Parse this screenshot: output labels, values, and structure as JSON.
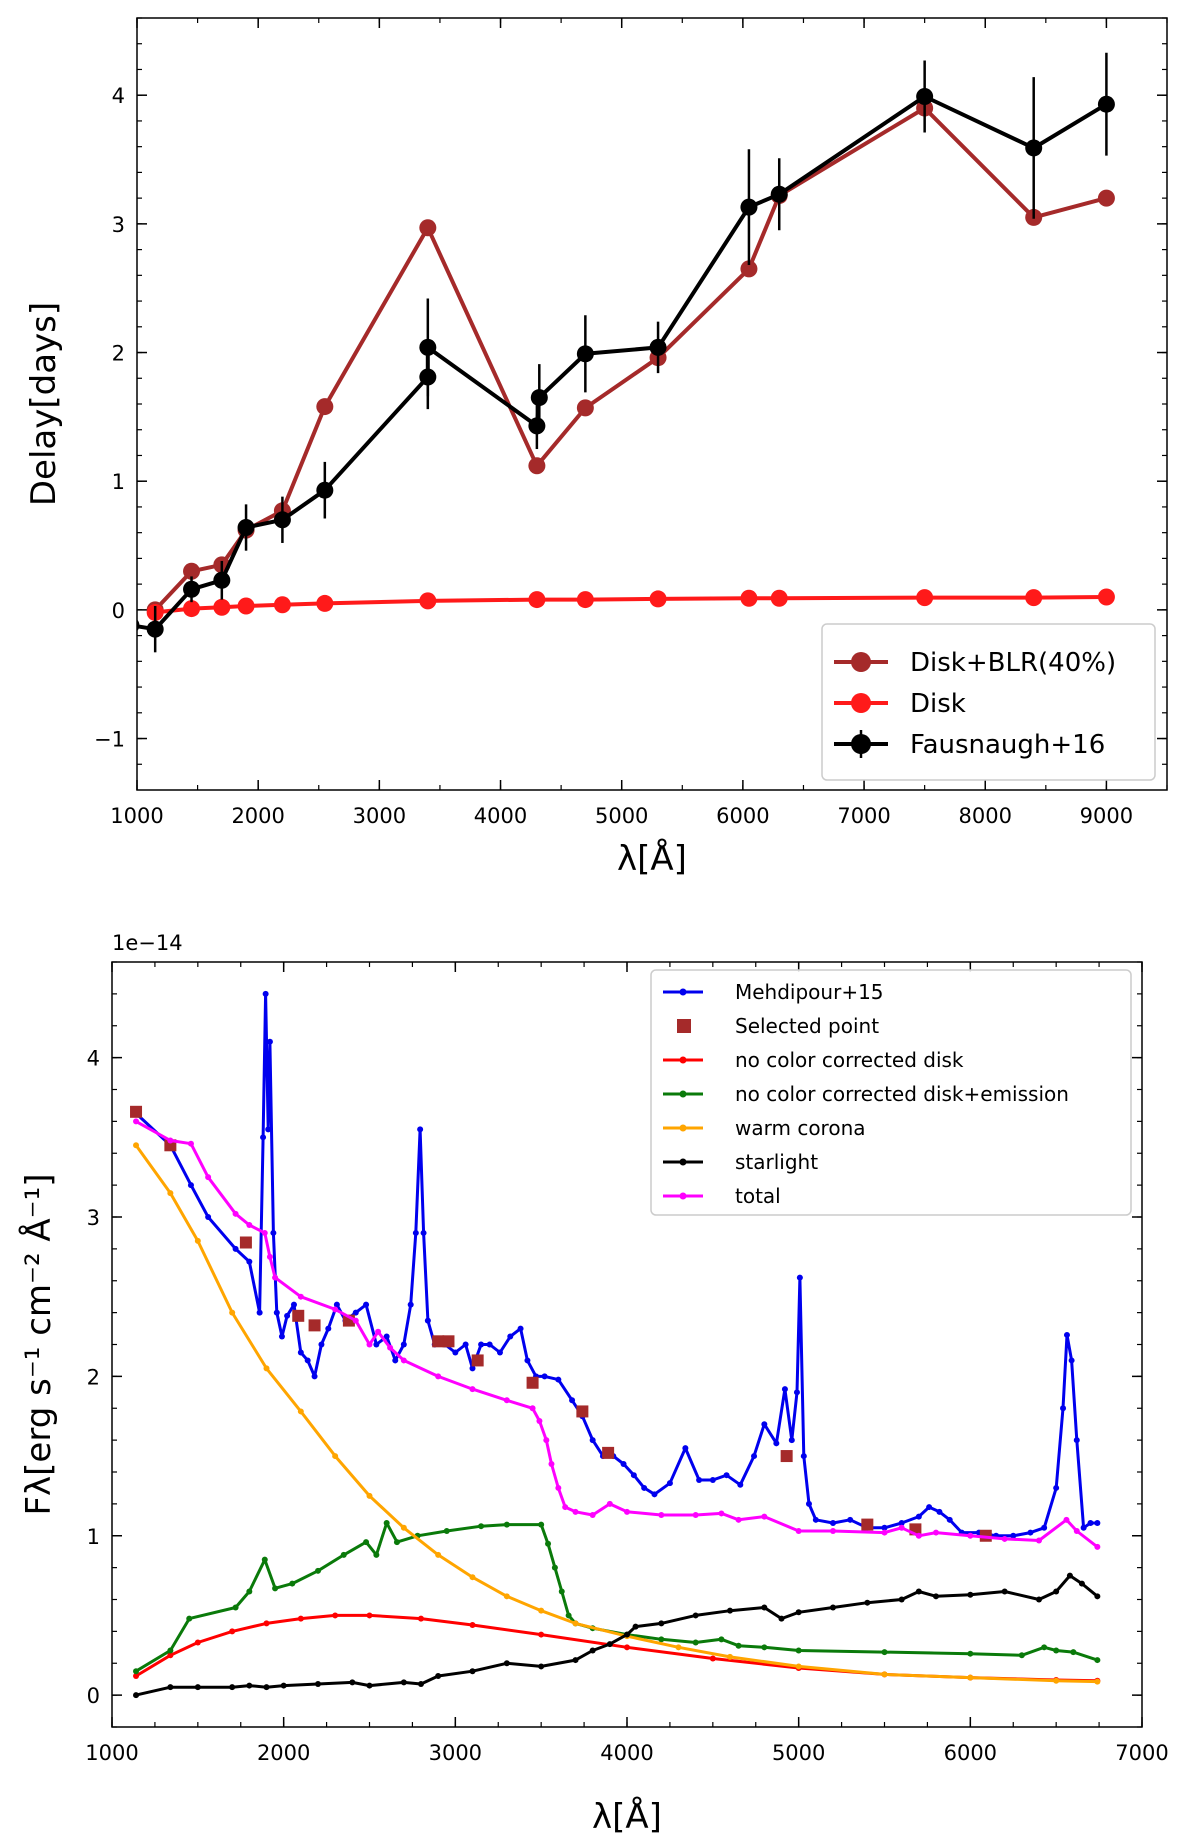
{
  "chart_data": [
    {
      "type": "line",
      "xlabel": "λ[Å]",
      "ylabel": "Delay[days]",
      "xlim": [
        1000,
        9500
      ],
      "ylim": [
        -1.4,
        4.6
      ],
      "xticks": [
        1000,
        2000,
        3000,
        4000,
        5000,
        6000,
        7000,
        8000,
        9000
      ],
      "yticks": [
        -1,
        0,
        1,
        2,
        3,
        4
      ],
      "legend_position": "lower-right",
      "series": [
        {
          "name": "Disk+BLR(40%)",
          "color": "#a52a2a",
          "x": [
            1150,
            1450,
            1700,
            1900,
            2200,
            2550,
            3400,
            4300,
            4700,
            5300,
            6050,
            6300,
            7500,
            8400,
            9000
          ],
          "y": [
            0.0,
            0.3,
            0.35,
            0.62,
            0.77,
            1.58,
            2.97,
            1.12,
            1.57,
            1.96,
            2.65,
            3.22,
            3.9,
            3.05,
            3.2
          ]
        },
        {
          "name": "Disk",
          "color": "#ff1a1a",
          "x": [
            1150,
            1450,
            1700,
            1900,
            2200,
            2550,
            3400,
            4300,
            4700,
            5300,
            6050,
            6300,
            7500,
            8400,
            9000
          ],
          "y": [
            -0.02,
            0.01,
            0.02,
            0.03,
            0.04,
            0.05,
            0.07,
            0.08,
            0.08,
            0.085,
            0.09,
            0.09,
            0.095,
            0.095,
            0.1
          ]
        },
        {
          "name": "Fausnaugh+16",
          "color": "#000000",
          "error_bars": true,
          "x": [
            950,
            1150,
            1450,
            1700,
            1900,
            2200,
            2550,
            3400,
            3400,
            4300,
            4320,
            4700,
            5300,
            6050,
            6300,
            7500,
            8400,
            9000
          ],
          "y": [
            -0.12,
            -0.15,
            0.16,
            0.23,
            0.64,
            0.7,
            0.93,
            1.81,
            2.04,
            1.43,
            1.65,
            1.99,
            2.04,
            3.13,
            3.23,
            3.99,
            3.59,
            3.93
          ],
          "yerr": [
            0.05,
            0.18,
            0.1,
            0.15,
            0.18,
            0.18,
            0.22,
            0.25,
            0.38,
            0.18,
            0.26,
            0.3,
            0.2,
            0.45,
            0.28,
            0.28,
            0.55,
            0.4
          ]
        }
      ]
    },
    {
      "type": "line",
      "xlabel": "λ[Å]",
      "ylabel": "Fλ[erg s⁻¹ cm⁻² Å⁻¹]",
      "offset_text": "1e−14",
      "xlim": [
        1000,
        7000
      ],
      "ylim": [
        -0.2,
        4.6
      ],
      "xticks": [
        1000,
        2000,
        3000,
        4000,
        5000,
        6000,
        7000
      ],
      "yticks": [
        0,
        1,
        2,
        3,
        4
      ],
      "legend_position": "upper-right",
      "series": [
        {
          "name": "Mehdipour+15",
          "color": "#0000ee",
          "x": [
            1140,
            1340,
            1460,
            1560,
            1720,
            1800,
            1860,
            1880,
            1895,
            1910,
            1920,
            1940,
            1960,
            1990,
            2020,
            2060,
            2100,
            2140,
            2180,
            2220,
            2260,
            2310,
            2360,
            2420,
            2480,
            2540,
            2600,
            2650,
            2700,
            2740,
            2770,
            2795,
            2815,
            2840,
            2880,
            2940,
            3000,
            3060,
            3100,
            3150,
            3200,
            3260,
            3320,
            3380,
            3420,
            3470,
            3520,
            3600,
            3680,
            3740,
            3800,
            3860,
            3920,
            3980,
            4040,
            4100,
            4160,
            4250,
            4340,
            4420,
            4500,
            4580,
            4660,
            4740,
            4800,
            4870,
            4920,
            4960,
            4990,
            5007,
            5030,
            5060,
            5100,
            5200,
            5300,
            5400,
            5500,
            5600,
            5700,
            5760,
            5820,
            5880,
            5950,
            6050,
            6150,
            6250,
            6350,
            6430,
            6500,
            6540,
            6563,
            6590,
            6620,
            6660,
            6700,
            6740
          ],
          "y": [
            3.65,
            3.45,
            3.2,
            3.0,
            2.8,
            2.72,
            2.4,
            3.5,
            4.4,
            3.55,
            4.1,
            2.9,
            2.4,
            2.25,
            2.38,
            2.45,
            2.15,
            2.1,
            2.0,
            2.2,
            2.3,
            2.45,
            2.35,
            2.4,
            2.45,
            2.2,
            2.25,
            2.1,
            2.2,
            2.45,
            2.9,
            3.55,
            2.9,
            2.35,
            2.2,
            2.2,
            2.15,
            2.2,
            2.05,
            2.2,
            2.2,
            2.15,
            2.25,
            2.3,
            2.1,
            2.0,
            2.0,
            1.98,
            1.85,
            1.75,
            1.6,
            1.5,
            1.5,
            1.45,
            1.38,
            1.3,
            1.26,
            1.33,
            1.55,
            1.35,
            1.35,
            1.38,
            1.32,
            1.5,
            1.7,
            1.58,
            1.92,
            1.6,
            1.9,
            2.62,
            1.5,
            1.2,
            1.1,
            1.08,
            1.1,
            1.05,
            1.05,
            1.08,
            1.12,
            1.18,
            1.15,
            1.1,
            1.02,
            1.02,
            1.0,
            1.0,
            1.02,
            1.05,
            1.3,
            1.8,
            2.26,
            2.1,
            1.6,
            1.05,
            1.08,
            1.08
          ]
        },
        {
          "name": "Selected point",
          "color": "#a52a2a",
          "marker": "square",
          "x": [
            1140,
            1340,
            1780,
            2085,
            2180,
            2380,
            2900,
            2960,
            3130,
            3450,
            3740,
            3890,
            4930,
            5400,
            5680,
            6090
          ],
          "y": [
            3.66,
            3.45,
            2.84,
            2.38,
            2.32,
            2.35,
            2.22,
            2.22,
            2.1,
            1.96,
            1.78,
            1.52,
            1.5,
            1.07,
            1.04,
            1.0
          ]
        },
        {
          "name": "no color corrected disk",
          "color": "#ff0000",
          "x": [
            1140,
            1340,
            1500,
            1700,
            1900,
            2100,
            2300,
            2500,
            2800,
            3100,
            3500,
            4000,
            4500,
            5000,
            5500,
            6000,
            6500,
            6740
          ],
          "y": [
            0.12,
            0.25,
            0.33,
            0.4,
            0.45,
            0.48,
            0.5,
            0.5,
            0.48,
            0.44,
            0.38,
            0.3,
            0.23,
            0.17,
            0.13,
            0.11,
            0.095,
            0.09
          ]
        },
        {
          "name": "no color corrected disk+emission",
          "color": "#0a7a0a",
          "x": [
            1140,
            1340,
            1450,
            1720,
            1800,
            1890,
            1950,
            2050,
            2200,
            2350,
            2480,
            2540,
            2600,
            2660,
            2780,
            2950,
            3150,
            3300,
            3500,
            3540,
            3580,
            3620,
            3660,
            3700,
            3800,
            4000,
            4200,
            4400,
            4550,
            4650,
            4800,
            5000,
            5500,
            6000,
            6300,
            6430,
            6500,
            6600,
            6740
          ],
          "y": [
            0.15,
            0.28,
            0.48,
            0.55,
            0.65,
            0.85,
            0.67,
            0.7,
            0.78,
            0.88,
            0.96,
            0.88,
            1.08,
            0.96,
            1.0,
            1.03,
            1.06,
            1.07,
            1.07,
            0.95,
            0.8,
            0.65,
            0.5,
            0.45,
            0.42,
            0.38,
            0.35,
            0.33,
            0.35,
            0.31,
            0.3,
            0.28,
            0.27,
            0.26,
            0.25,
            0.3,
            0.28,
            0.27,
            0.22
          ]
        },
        {
          "name": "warm corona",
          "color": "#ffa500",
          "x": [
            1140,
            1340,
            1500,
            1700,
            1900,
            2100,
            2300,
            2500,
            2700,
            2900,
            3100,
            3300,
            3500,
            3700,
            4000,
            4300,
            4600,
            5000,
            5500,
            6000,
            6500,
            6740
          ],
          "y": [
            3.45,
            3.15,
            2.85,
            2.4,
            2.05,
            1.78,
            1.5,
            1.25,
            1.05,
            0.88,
            0.74,
            0.62,
            0.53,
            0.45,
            0.37,
            0.3,
            0.24,
            0.18,
            0.13,
            0.11,
            0.09,
            0.085
          ]
        },
        {
          "name": "starlight",
          "color": "#000000",
          "x": [
            1140,
            1340,
            1500,
            1700,
            1800,
            1900,
            2000,
            2200,
            2400,
            2500,
            2700,
            2800,
            2900,
            3100,
            3300,
            3500,
            3700,
            3800,
            3900,
            4000,
            4050,
            4200,
            4400,
            4600,
            4800,
            4900,
            5000,
            5200,
            5400,
            5600,
            5700,
            5800,
            6000,
            6200,
            6400,
            6500,
            6580,
            6650,
            6740
          ],
          "y": [
            0.0,
            0.05,
            0.05,
            0.05,
            0.06,
            0.05,
            0.06,
            0.07,
            0.08,
            0.06,
            0.08,
            0.07,
            0.12,
            0.15,
            0.2,
            0.18,
            0.22,
            0.28,
            0.32,
            0.38,
            0.43,
            0.45,
            0.5,
            0.53,
            0.55,
            0.48,
            0.52,
            0.55,
            0.58,
            0.6,
            0.65,
            0.62,
            0.63,
            0.65,
            0.6,
            0.65,
            0.75,
            0.7,
            0.62
          ]
        },
        {
          "name": "total",
          "color": "#ff00ff",
          "x": [
            1140,
            1340,
            1460,
            1560,
            1720,
            1800,
            1890,
            1920,
            1950,
            2100,
            2300,
            2420,
            2500,
            2550,
            2620,
            2700,
            2900,
            3100,
            3300,
            3450,
            3490,
            3530,
            3560,
            3600,
            3640,
            3700,
            3800,
            3900,
            4000,
            4200,
            4400,
            4550,
            4650,
            4800,
            5000,
            5200,
            5500,
            5600,
            5700,
            5800,
            6000,
            6200,
            6400,
            6560,
            6620,
            6740
          ],
          "y": [
            3.6,
            3.48,
            3.46,
            3.25,
            3.02,
            2.95,
            2.9,
            2.75,
            2.62,
            2.5,
            2.42,
            2.35,
            2.2,
            2.28,
            2.18,
            2.1,
            2.0,
            1.92,
            1.85,
            1.8,
            1.72,
            1.6,
            1.45,
            1.3,
            1.18,
            1.15,
            1.13,
            1.2,
            1.15,
            1.13,
            1.13,
            1.14,
            1.1,
            1.12,
            1.03,
            1.03,
            1.02,
            1.05,
            1.0,
            1.02,
            1.0,
            0.98,
            0.97,
            1.1,
            1.03,
            0.93
          ]
        }
      ]
    }
  ]
}
